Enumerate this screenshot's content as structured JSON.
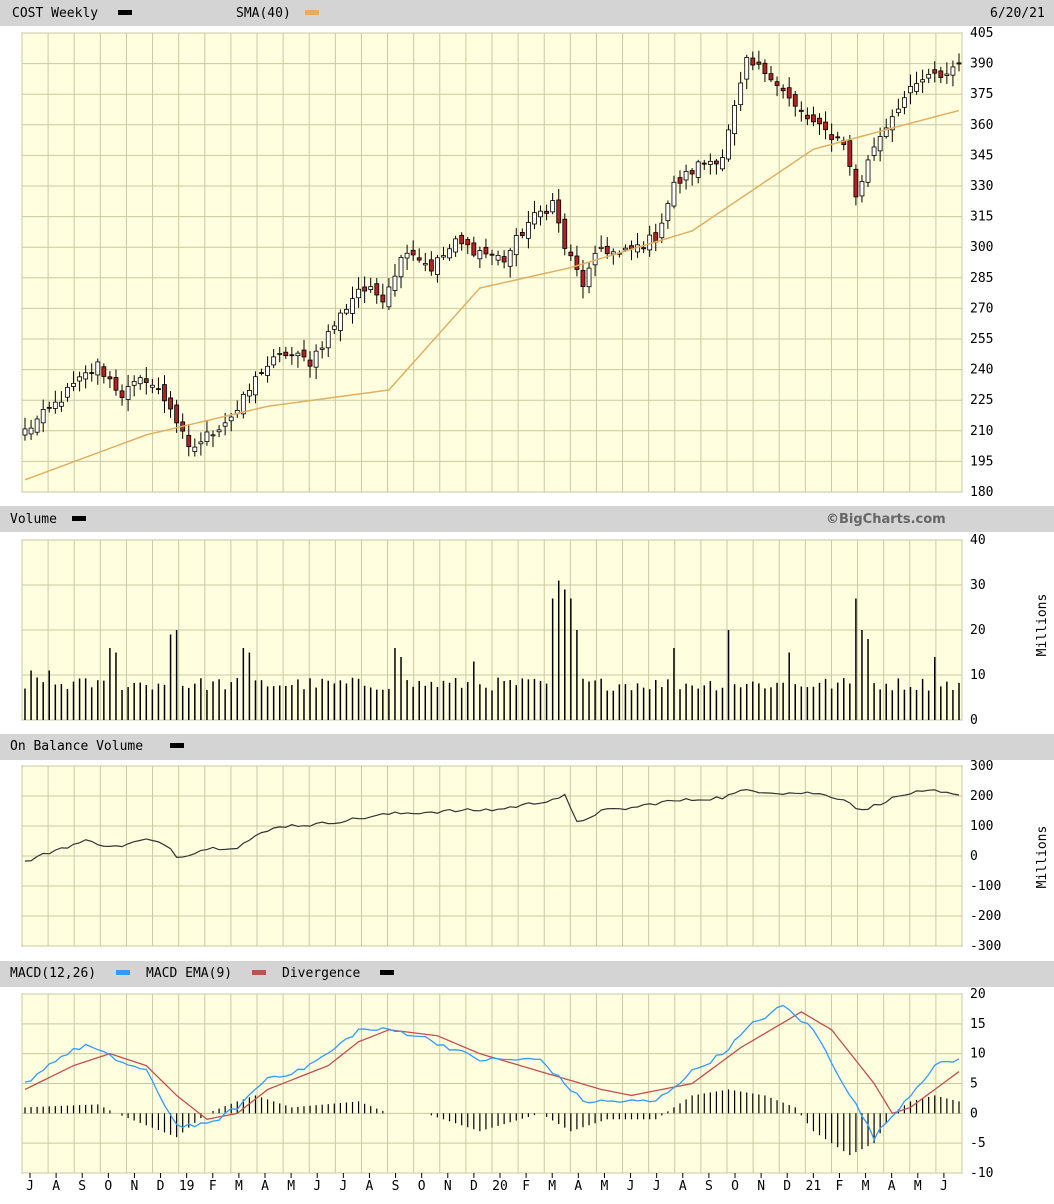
{
  "header": {
    "symbol_label": "COST Weekly",
    "sma_label": "SMA(40)",
    "date": "6/20/21"
  },
  "volume_panel": {
    "title": "Volume",
    "units": "Millions",
    "watermark": "©BigCharts.com"
  },
  "obv_panel": {
    "title": "On Balance Volume",
    "units": "Millions"
  },
  "macd_panel": {
    "macd_label": "MACD(12,26)",
    "ema_label": "MACD EMA(9)",
    "divergence_label": "Divergence"
  },
  "colors": {
    "plot_bg": "#ffffe0",
    "grid": "#c8c8a0",
    "header_bg": "#d4d4d4",
    "up_candle": "#ffffff",
    "down_candle": "#b22222",
    "sma": "#e0b060",
    "macd": "#3399ff",
    "macd_ema": "#c0504d"
  },
  "chart_data": [
    {
      "type": "candlestick",
      "title": "COST Weekly",
      "series_label": "SMA(40)",
      "ylim": [
        180,
        405
      ],
      "yticks": [
        180,
        195,
        210,
        225,
        240,
        255,
        270,
        285,
        300,
        315,
        330,
        345,
        360,
        375,
        390,
        405
      ],
      "x_months": [
        "J",
        "A",
        "S",
        "O",
        "N",
        "D",
        "19",
        "F",
        "M",
        "A",
        "M",
        "J",
        "J",
        "A",
        "S",
        "O",
        "N",
        "D",
        "20",
        "F",
        "M",
        "A",
        "M",
        "J",
        "J",
        "A",
        "S",
        "O",
        "N",
        "D",
        "21",
        "F",
        "M",
        "A",
        "M",
        "J"
      ],
      "close_anchors": [
        [
          0,
          210
        ],
        [
          4,
          220
        ],
        [
          8,
          232
        ],
        [
          12,
          242
        ],
        [
          16,
          228
        ],
        [
          20,
          236
        ],
        [
          24,
          222
        ],
        [
          27,
          200
        ],
        [
          31,
          210
        ],
        [
          35,
          220
        ],
        [
          39,
          240
        ],
        [
          43,
          248
        ],
        [
          47,
          244
        ],
        [
          51,
          262
        ],
        [
          55,
          280
        ],
        [
          59,
          276
        ],
        [
          63,
          300
        ],
        [
          67,
          290
        ],
        [
          71,
          302
        ],
        [
          75,
          298
        ],
        [
          79,
          294
        ],
        [
          83,
          312
        ],
        [
          87,
          322
        ],
        [
          89,
          300
        ],
        [
          92,
          282
        ],
        [
          95,
          300
        ],
        [
          98,
          296
        ],
        [
          101,
          300
        ],
        [
          104,
          305
        ],
        [
          107,
          330
        ],
        [
          111,
          340
        ],
        [
          115,
          345
        ],
        [
          119,
          390
        ],
        [
          123,
          385
        ],
        [
          127,
          368
        ],
        [
          131,
          358
        ],
        [
          135,
          352
        ],
        [
          137,
          325
        ],
        [
          140,
          350
        ],
        [
          144,
          370
        ],
        [
          148,
          382
        ],
        [
          152,
          385
        ],
        [
          154,
          392
        ]
      ],
      "sma_points": [
        [
          0,
          186
        ],
        [
          20,
          208
        ],
        [
          40,
          222
        ],
        [
          60,
          230
        ],
        [
          75,
          280
        ],
        [
          90,
          290
        ],
        [
          110,
          308
        ],
        [
          130,
          348
        ],
        [
          145,
          360
        ],
        [
          154,
          367
        ]
      ],
      "n_weeks": 155
    },
    {
      "type": "bar",
      "title": "Volume",
      "ylabel": "Millions",
      "ylim": [
        0,
        40
      ],
      "yticks": [
        0,
        10,
        20,
        30,
        40
      ],
      "base_level": 8,
      "spikes": [
        [
          1,
          11
        ],
        [
          4,
          11
        ],
        [
          14,
          16
        ],
        [
          15,
          15
        ],
        [
          24,
          19
        ],
        [
          25,
          20
        ],
        [
          36,
          16
        ],
        [
          37,
          15
        ],
        [
          61,
          16
        ],
        [
          62,
          14
        ],
        [
          74,
          13
        ],
        [
          87,
          27
        ],
        [
          88,
          31
        ],
        [
          89,
          29
        ],
        [
          90,
          27
        ],
        [
          91,
          20
        ],
        [
          107,
          16
        ],
        [
          116,
          20
        ],
        [
          126,
          15
        ],
        [
          137,
          27
        ],
        [
          138,
          20
        ],
        [
          139,
          18
        ],
        [
          150,
          14
        ]
      ]
    },
    {
      "type": "line",
      "title": "On Balance Volume",
      "ylabel": "Millions",
      "ylim": [
        -300,
        300
      ],
      "yticks": [
        -300,
        -200,
        -100,
        0,
        100,
        200,
        300
      ],
      "anchors": [
        [
          0,
          -20
        ],
        [
          5,
          20
        ],
        [
          10,
          50
        ],
        [
          15,
          30
        ],
        [
          20,
          55
        ],
        [
          24,
          30
        ],
        [
          25,
          -5
        ],
        [
          30,
          25
        ],
        [
          35,
          30
        ],
        [
          38,
          65
        ],
        [
          42,
          100
        ],
        [
          48,
          105
        ],
        [
          55,
          125
        ],
        [
          60,
          140
        ],
        [
          65,
          145
        ],
        [
          70,
          150
        ],
        [
          78,
          155
        ],
        [
          85,
          180
        ],
        [
          89,
          200
        ],
        [
          91,
          110
        ],
        [
          95,
          150
        ],
        [
          100,
          160
        ],
        [
          105,
          180
        ],
        [
          115,
          195
        ],
        [
          119,
          220
        ],
        [
          125,
          210
        ],
        [
          130,
          210
        ],
        [
          135,
          190
        ],
        [
          138,
          150
        ],
        [
          142,
          185
        ],
        [
          146,
          210
        ],
        [
          150,
          215
        ],
        [
          154,
          200
        ]
      ]
    },
    {
      "type": "line",
      "title": "MACD(12,26)",
      "series": [
        {
          "name": "MACD(12,26)",
          "anchors": [
            [
              0,
              5
            ],
            [
              5,
              9
            ],
            [
              10,
              11.5
            ],
            [
              15,
              9
            ],
            [
              20,
              7
            ],
            [
              25,
              -2
            ],
            [
              30,
              -2
            ],
            [
              35,
              1
            ],
            [
              40,
              6
            ],
            [
              45,
              7
            ],
            [
              50,
              10
            ],
            [
              55,
              14
            ],
            [
              60,
              14
            ],
            [
              65,
              13
            ],
            [
              70,
              11
            ],
            [
              75,
              9
            ],
            [
              85,
              9
            ],
            [
              92,
              2
            ],
            [
              100,
              2
            ],
            [
              104,
              2
            ],
            [
              110,
              7
            ],
            [
              115,
              10
            ],
            [
              120,
              15
            ],
            [
              125,
              18
            ],
            [
              130,
              14
            ],
            [
              135,
              5
            ],
            [
              140,
              -4
            ],
            [
              145,
              2
            ],
            [
              150,
              8
            ],
            [
              154,
              9
            ]
          ]
        },
        {
          "name": "MACD EMA(9)",
          "anchors": [
            [
              0,
              4
            ],
            [
              8,
              8
            ],
            [
              14,
              10
            ],
            [
              20,
              8
            ],
            [
              25,
              3
            ],
            [
              30,
              -1
            ],
            [
              35,
              0
            ],
            [
              40,
              4
            ],
            [
              50,
              8
            ],
            [
              55,
              12
            ],
            [
              60,
              14
            ],
            [
              68,
              13
            ],
            [
              75,
              10
            ],
            [
              85,
              7
            ],
            [
              95,
              4
            ],
            [
              100,
              3
            ],
            [
              110,
              5
            ],
            [
              118,
              11
            ],
            [
              128,
              17
            ],
            [
              133,
              14
            ],
            [
              140,
              5
            ],
            [
              143,
              0
            ],
            [
              146,
              1
            ],
            [
              154,
              7
            ]
          ]
        },
        {
          "name": "Divergence",
          "type": "bar",
          "anchors": [
            [
              0,
              1
            ],
            [
              12,
              1.5
            ],
            [
              15,
              0
            ],
            [
              20,
              -2
            ],
            [
              25,
              -4
            ],
            [
              30,
              0
            ],
            [
              35,
              2
            ],
            [
              38,
              3
            ],
            [
              44,
              1
            ],
            [
              55,
              2
            ],
            [
              60,
              0
            ],
            [
              66,
              0
            ],
            [
              75,
              -3
            ],
            [
              85,
              0
            ],
            [
              90,
              -3
            ],
            [
              96,
              -1
            ],
            [
              104,
              -1
            ],
            [
              110,
              3
            ],
            [
              116,
              4
            ],
            [
              122,
              3
            ],
            [
              127,
              1
            ],
            [
              130,
              -3
            ],
            [
              136,
              -7
            ],
            [
              140,
              -5
            ],
            [
              143,
              0
            ],
            [
              146,
              2
            ],
            [
              150,
              3
            ],
            [
              154,
              2
            ]
          ]
        }
      ],
      "ylim": [
        -10,
        20
      ],
      "yticks": [
        -10,
        -5,
        0,
        5,
        10,
        15,
        20
      ]
    }
  ]
}
